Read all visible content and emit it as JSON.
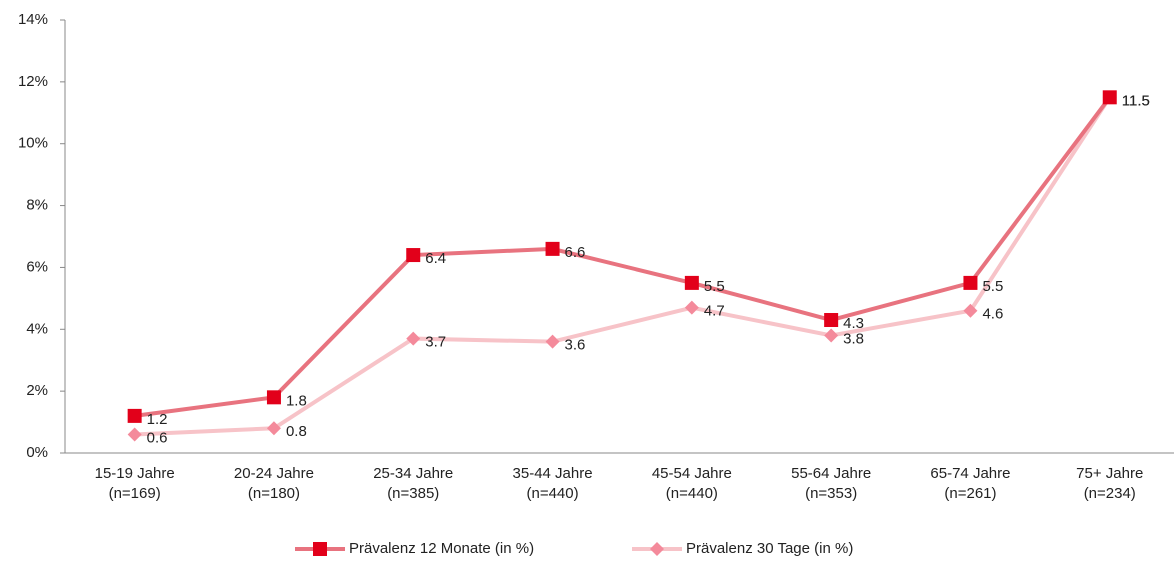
{
  "chart_data": {
    "type": "line",
    "categories": [
      "15-19 Jahre\n(n=169)",
      "20-24 Jahre\n(n=180)",
      "25-34 Jahre\n(n=385)",
      "35-44 Jahre\n(n=440)",
      "45-54 Jahre\n(n=440)",
      "55-64 Jahre\n(n=353)",
      "65-74 Jahre\n(n=261)",
      "75+ Jahre\n(n=234)"
    ],
    "series": [
      {
        "name": "Prävalenz 12 Monate (in %)",
        "color": "#e8737f",
        "marker_color": "#e2001a",
        "marker": "square",
        "values": [
          1.2,
          1.8,
          6.4,
          6.6,
          5.5,
          4.3,
          5.5,
          11.5
        ]
      },
      {
        "name": "Prävalenz 30 Tage (in %)",
        "color": "#f7c3c8",
        "marker_color": "#f48a9b",
        "marker": "diamond",
        "values": [
          0.6,
          0.8,
          3.7,
          3.6,
          4.7,
          3.8,
          4.6,
          11.5
        ]
      }
    ],
    "ylim": [
      0,
      14
    ],
    "yticks": [
      {
        "value": 0,
        "label": "0%"
      },
      {
        "value": 2,
        "label": "2%"
      },
      {
        "value": 4,
        "label": "4%"
      },
      {
        "value": 6,
        "label": "6%"
      },
      {
        "value": 8,
        "label": "8%"
      },
      {
        "value": 10,
        "label": "10%"
      },
      {
        "value": 12,
        "label": "12%"
      },
      {
        "value": 14,
        "label": "14%"
      }
    ],
    "legend": "bottom"
  }
}
